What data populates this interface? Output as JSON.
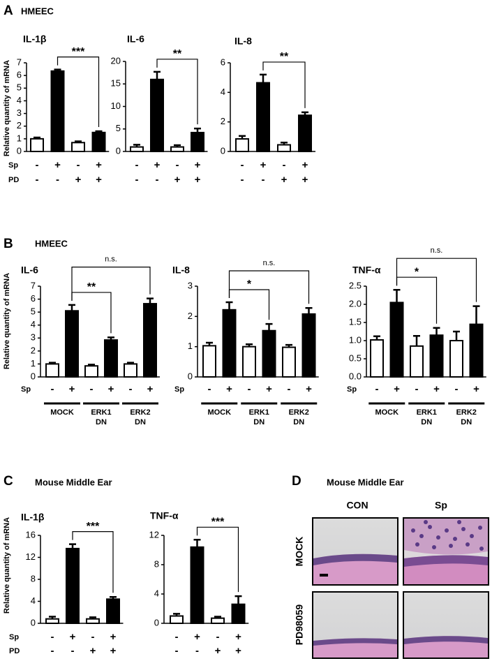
{
  "figure": {
    "panels": [
      {
        "letter": "A",
        "heading": "HMEEC"
      },
      {
        "letter": "B",
        "heading": "HMEEC"
      },
      {
        "letter": "C",
        "heading": "Mouse Middle Ear"
      },
      {
        "letter": "D",
        "heading": "Mouse Middle Ear"
      }
    ]
  },
  "chart_data": [
    {
      "type": "bar",
      "title": "IL-1β",
      "ylabel": "Relative quantity of mRNA",
      "ylim": [
        0,
        7
      ],
      "yticks": [
        0,
        1,
        2,
        3,
        4,
        5,
        6,
        7
      ],
      "series": [
        {
          "values": [
            1.0,
            6.35,
            0.7,
            1.5
          ],
          "errors": [
            0.1,
            0.12,
            0.1,
            0.1
          ],
          "colors": [
            "#ffffff",
            "#000000",
            "#ffffff",
            "#000000"
          ]
        }
      ],
      "conditions": [
        {
          "name": "Sp",
          "signs": [
            "-",
            "+",
            "-",
            "+"
          ]
        },
        {
          "name": "PD",
          "signs": [
            "-",
            "-",
            "+",
            "+"
          ]
        }
      ],
      "annotations": [
        "***"
      ]
    },
    {
      "type": "bar",
      "title": "IL-6",
      "ylim": [
        0,
        20
      ],
      "yticks": [
        0,
        5,
        10,
        15,
        20
      ],
      "series": [
        {
          "values": [
            1.0,
            16.0,
            1.0,
            4.2
          ],
          "errors": [
            0.5,
            1.7,
            0.4,
            0.9
          ],
          "colors": [
            "#ffffff",
            "#000000",
            "#ffffff",
            "#000000"
          ]
        }
      ],
      "conditions": [
        {
          "signs": [
            "-",
            "+",
            "-",
            "+"
          ]
        },
        {
          "signs": [
            "-",
            "-",
            "+",
            "+"
          ]
        }
      ],
      "annotations": [
        "**"
      ]
    },
    {
      "type": "bar",
      "title": "IL-8",
      "ylim": [
        0,
        6
      ],
      "yticks": [
        0,
        2,
        4,
        6
      ],
      "series": [
        {
          "values": [
            0.85,
            4.65,
            0.45,
            2.45
          ],
          "errors": [
            0.2,
            0.55,
            0.15,
            0.2
          ],
          "colors": [
            "#ffffff",
            "#000000",
            "#ffffff",
            "#000000"
          ]
        }
      ],
      "conditions": [
        {
          "signs": [
            "-",
            "+",
            "-",
            "+"
          ]
        },
        {
          "signs": [
            "-",
            "-",
            "+",
            "+"
          ]
        }
      ],
      "annotations": [
        "**"
      ]
    },
    {
      "type": "bar",
      "title": "IL-6",
      "ylabel": "Relative quantity of mRNA",
      "ylim": [
        0,
        7
      ],
      "yticks": [
        0,
        1,
        2,
        3,
        4,
        5,
        6,
        7
      ],
      "series": [
        {
          "values": [
            1.0,
            5.1,
            0.85,
            2.85,
            1.0,
            5.65
          ],
          "errors": [
            0.1,
            0.45,
            0.1,
            0.2,
            0.1,
            0.4
          ],
          "colors": [
            "#ffffff",
            "#000000",
            "#ffffff",
            "#000000",
            "#ffffff",
            "#000000"
          ]
        }
      ],
      "conditions": [
        {
          "name": "Sp",
          "signs": [
            "-",
            "+",
            "-",
            "+",
            "-",
            "+"
          ]
        }
      ],
      "groups": [
        "MOCK",
        "ERK1\nDN",
        "ERK2\nDN"
      ],
      "annotations": [
        "**",
        "n.s."
      ]
    },
    {
      "type": "bar",
      "title": "IL-8",
      "ylim": [
        0,
        3
      ],
      "yticks": [
        0,
        1,
        2,
        3
      ],
      "series": [
        {
          "values": [
            1.03,
            2.22,
            1.0,
            1.53,
            0.98,
            2.08
          ],
          "errors": [
            0.1,
            0.25,
            0.08,
            0.22,
            0.08,
            0.2
          ],
          "colors": [
            "#ffffff",
            "#000000",
            "#ffffff",
            "#000000",
            "#ffffff",
            "#000000"
          ]
        }
      ],
      "conditions": [
        {
          "name": "Sp",
          "signs": [
            "-",
            "+",
            "-",
            "+",
            "-",
            "+"
          ]
        }
      ],
      "groups": [
        "MOCK",
        "ERK1\nDN",
        "ERK2\nDN"
      ],
      "annotations": [
        "*",
        "n.s."
      ]
    },
    {
      "type": "bar",
      "title": "TNF-α",
      "ylim": [
        0,
        2.5
      ],
      "yticks": [
        {
          "value": 0,
          "label": "0.0"
        },
        0.5,
        {
          "value": 1,
          "label": "1.0"
        },
        1.5,
        {
          "value": 2,
          "label": "2.0"
        },
        2.5
      ],
      "series": [
        {
          "values": [
            1.02,
            2.05,
            0.85,
            1.15,
            1.0,
            1.45
          ],
          "errors": [
            0.1,
            0.35,
            0.28,
            0.2,
            0.25,
            0.5
          ],
          "colors": [
            "#ffffff",
            "#000000",
            "#ffffff",
            "#000000",
            "#ffffff",
            "#000000"
          ]
        }
      ],
      "conditions": [
        {
          "name": "Sp",
          "signs": [
            "-",
            "+",
            "-",
            "+",
            "-",
            "+"
          ]
        }
      ],
      "groups": [
        "MOCK",
        "ERK1\nDN",
        "ERK2\nDN"
      ],
      "annotations": [
        "*",
        "n.s."
      ]
    },
    {
      "type": "bar",
      "title": "IL-1β",
      "ylabel": "Relative quantity of mRNA",
      "ylim": [
        0,
        16
      ],
      "yticks": [
        0,
        4,
        8,
        12,
        16
      ],
      "series": [
        {
          "values": [
            0.8,
            13.6,
            0.8,
            4.4
          ],
          "errors": [
            0.4,
            0.8,
            0.3,
            0.4
          ],
          "colors": [
            "#ffffff",
            "#000000",
            "#ffffff",
            "#000000"
          ]
        }
      ],
      "conditions": [
        {
          "name": "Sp",
          "signs": [
            "-",
            "+",
            "-",
            "+"
          ]
        },
        {
          "name": "PD",
          "signs": [
            "-",
            "-",
            "+",
            "+"
          ]
        }
      ],
      "annotations": [
        "***"
      ]
    },
    {
      "type": "bar",
      "title": "TNF-α",
      "ylim": [
        0,
        12
      ],
      "yticks": [
        0,
        4,
        8,
        12
      ],
      "series": [
        {
          "values": [
            1.0,
            10.4,
            0.7,
            2.6
          ],
          "errors": [
            0.3,
            1.0,
            0.2,
            1.1
          ],
          "colors": [
            "#ffffff",
            "#000000",
            "#ffffff",
            "#000000"
          ]
        }
      ],
      "conditions": [
        {
          "signs": [
            "-",
            "+",
            "-",
            "+"
          ]
        },
        {
          "signs": [
            "-",
            "-",
            "+",
            "+"
          ]
        }
      ],
      "annotations": [
        "***"
      ]
    }
  ],
  "micrographs": {
    "columns": [
      "CON",
      "Sp"
    ],
    "rows": [
      "MOCK",
      "PD98059"
    ]
  }
}
